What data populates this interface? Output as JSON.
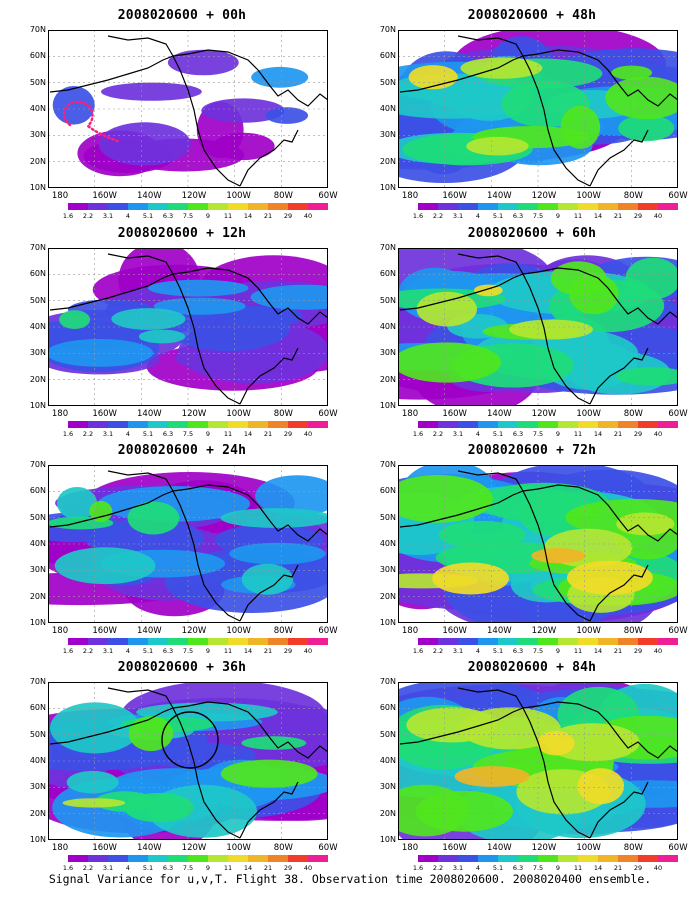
{
  "panels": [
    {
      "title": "2008020600 + 00h",
      "fill": 0.15
    },
    {
      "title": "2008020600 + 48h",
      "fill": 0.7
    },
    {
      "title": "2008020600 + 12h",
      "fill": 0.4
    },
    {
      "title": "2008020600 + 60h",
      "fill": 0.78
    },
    {
      "title": "2008020600 + 24h",
      "fill": 0.55
    },
    {
      "title": "2008020600 + 72h",
      "fill": 0.85
    },
    {
      "title": "2008020600 + 36h",
      "fill": 0.62
    },
    {
      "title": "2008020600 + 84h",
      "fill": 0.92
    }
  ],
  "lat_labels": [
    "70N",
    "60N",
    "50N",
    "40N",
    "30N",
    "20N",
    "10N"
  ],
  "lon_labels": [
    "180",
    "160W",
    "140W",
    "120W",
    "100W",
    "80W",
    "60W"
  ],
  "colorbar": {
    "labels": [
      "1.6",
      "2.2",
      "3.1",
      "4",
      "5.1",
      "6.3",
      "7.5",
      "9",
      "11",
      "14",
      "21",
      "29",
      "40"
    ],
    "colors": [
      "#ffffff",
      "#a000c8",
      "#6e32dc",
      "#3c50e6",
      "#1e96f0",
      "#1ec8c8",
      "#1edc78",
      "#50e61e",
      "#b4e632",
      "#f0dc28",
      "#f0b428",
      "#f08228",
      "#f03c28",
      "#f01e96"
    ]
  },
  "caption": "Signal Variance for u,v,T. Flight 38. Observation time 2008020600. 2008020400 ensemble."
}
